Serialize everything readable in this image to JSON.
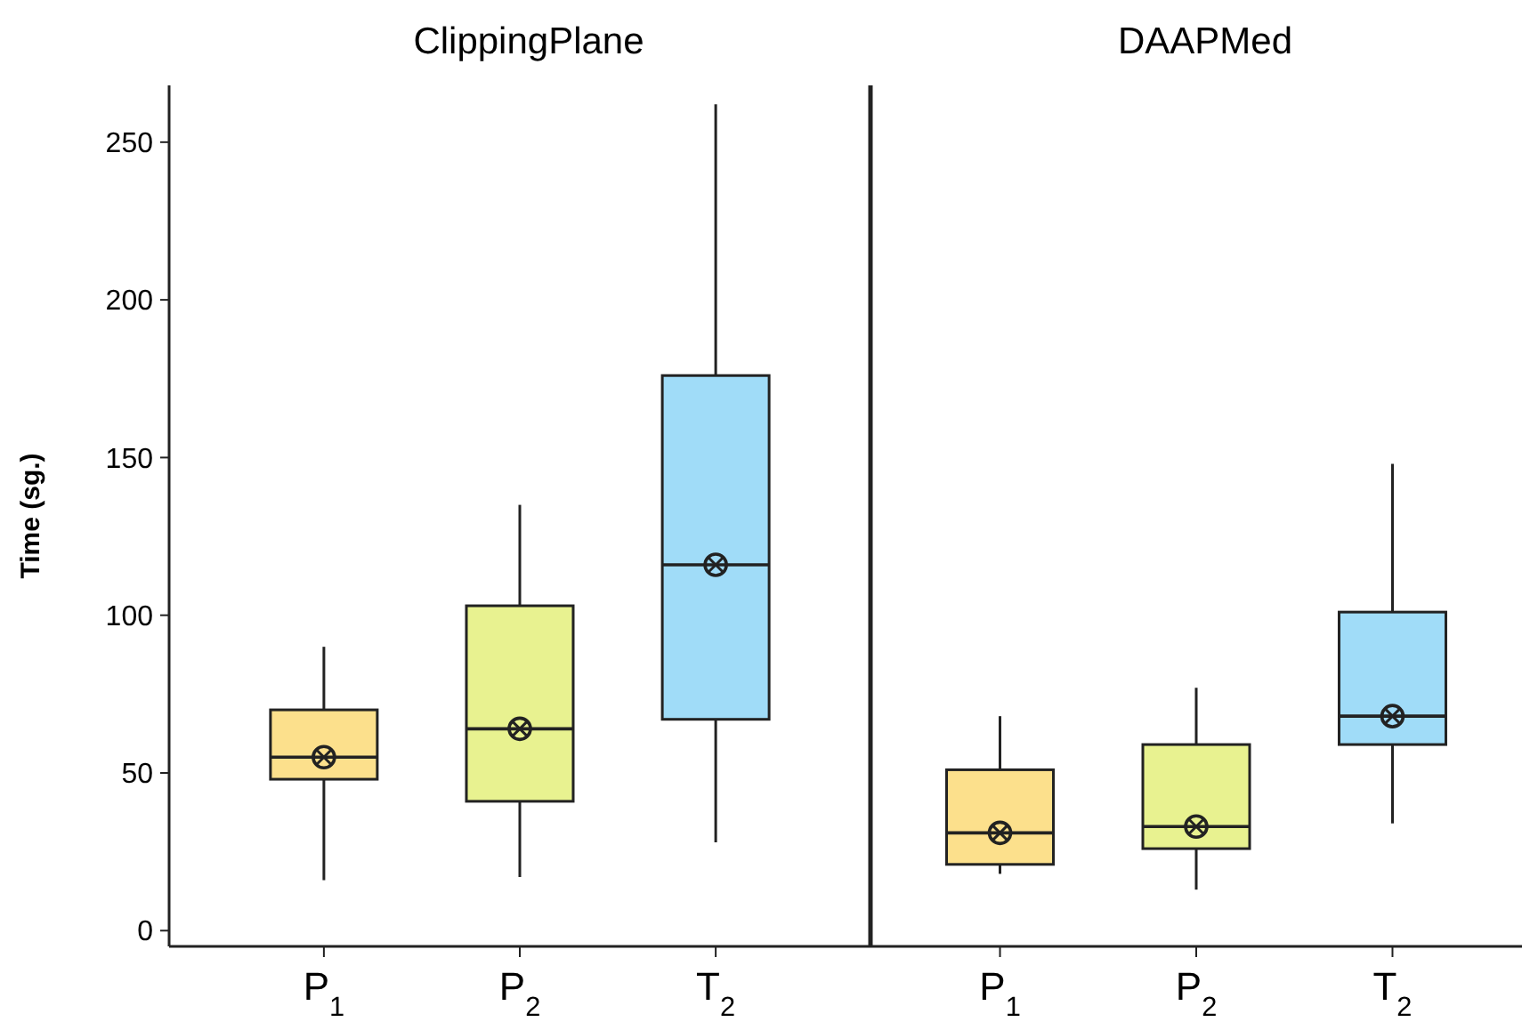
{
  "chart_data": [
    {
      "type": "box",
      "title": "ClippingPlane",
      "ylabel": "Time (sg.)",
      "categories": [
        "P$_{1}$",
        "P$_{2}$",
        "T$_{2}$"
      ],
      "colors": [
        "#fce08c",
        "#e8f290",
        "#a0dcf8"
      ],
      "ylim": [
        -5,
        268
      ],
      "yticks": [
        0,
        50,
        100,
        150,
        200,
        250
      ],
      "boxes": [
        {
          "low": 16,
          "q1": 48,
          "median": 55,
          "q3": 70,
          "high": 90,
          "mean": 55
        },
        {
          "low": 17,
          "q1": 41,
          "median": 64,
          "q3": 103,
          "high": 135,
          "mean": 64
        },
        {
          "low": 28,
          "q1": 67,
          "median": 116,
          "q3": 176,
          "high": 262,
          "mean": 116
        }
      ]
    },
    {
      "type": "box",
      "title": "DAAPMed",
      "categories": [
        "P$_{1}$",
        "P$_{2}$",
        "T$_{2}$"
      ],
      "colors": [
        "#fce08c",
        "#e8f290",
        "#a0dcf8"
      ],
      "ylim": [
        -5,
        268
      ],
      "yticks": [
        0,
        50,
        100,
        150,
        200,
        250
      ],
      "tick_labels": "x",
      "boxes": [
        {
          "low": 18,
          "q1": 21,
          "median": 31,
          "q3": 51,
          "high": 68,
          "mean": 31
        },
        {
          "low": 13,
          "q1": 26,
          "median": 33,
          "q3": 59,
          "high": 77,
          "mean": 33
        },
        {
          "low": 34,
          "q1": 59,
          "median": 68,
          "q3": 101,
          "high": 148,
          "mean": 68
        }
      ]
    }
  ]
}
